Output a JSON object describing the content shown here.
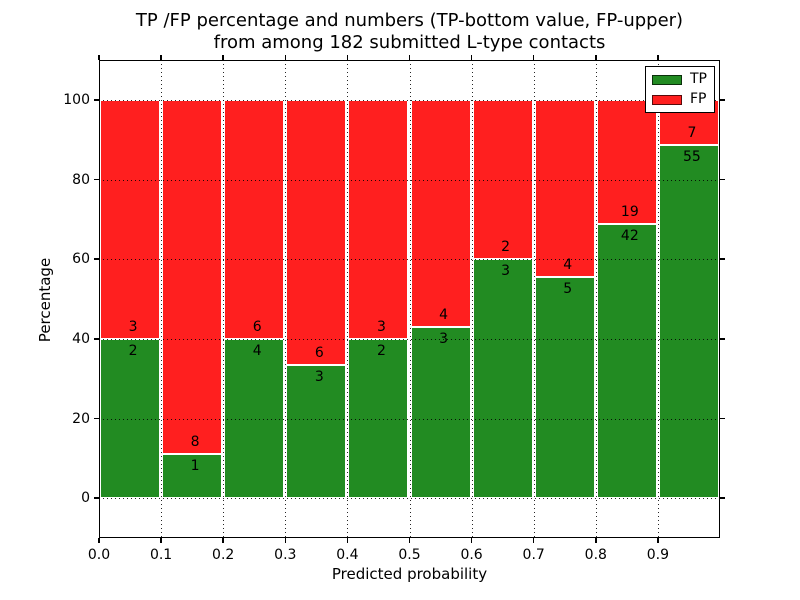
{
  "title": {
    "line1": "TP /FP percentage and numbers (TP-bottom value, FP-upper)",
    "line2": "from among 182 submitted L-type contacts"
  },
  "chart_data": {
    "type": "bar",
    "stacked": true,
    "normalized_to_percent": 100,
    "title": "TP /FP percentage and numbers (TP-bottom value, FP-upper) from among 182 submitted L-type contacts",
    "xlabel": "Predicted probability",
    "ylabel": "Percentage",
    "total_contacts": 182,
    "bin_width": 0.1,
    "categories": [
      "0.0",
      "0.1",
      "0.2",
      "0.3",
      "0.4",
      "0.5",
      "0.6",
      "0.7",
      "0.8",
      "0.9"
    ],
    "series": [
      {
        "name": "TP",
        "color": "#228b22",
        "values": [
          2,
          1,
          4,
          3,
          2,
          3,
          3,
          5,
          42,
          55
        ]
      },
      {
        "name": "FP",
        "color": "#ff1f1f",
        "values": [
          3,
          8,
          6,
          6,
          3,
          4,
          2,
          4,
          19,
          7
        ]
      }
    ],
    "tp_percent_height": [
      40.0,
      11.11,
      40.0,
      33.33,
      40.0,
      42.86,
      60.0,
      55.56,
      68.85,
      88.71
    ],
    "xlim": [
      0.0,
      1.0
    ],
    "ylim": [
      -10,
      110
    ],
    "yticks": [
      0,
      20,
      40,
      60,
      80,
      100
    ],
    "ytick_labels": [
      "0",
      "20",
      "40",
      "60",
      "80",
      "100"
    ],
    "xticks": [
      0.0,
      0.1,
      0.2,
      0.3,
      0.4,
      0.5,
      0.6,
      0.7,
      0.8,
      0.9
    ],
    "grid": "dotted",
    "legend_position": "upper right",
    "bar_edge_color": "#ffffff",
    "axis_color": "#000000"
  }
}
